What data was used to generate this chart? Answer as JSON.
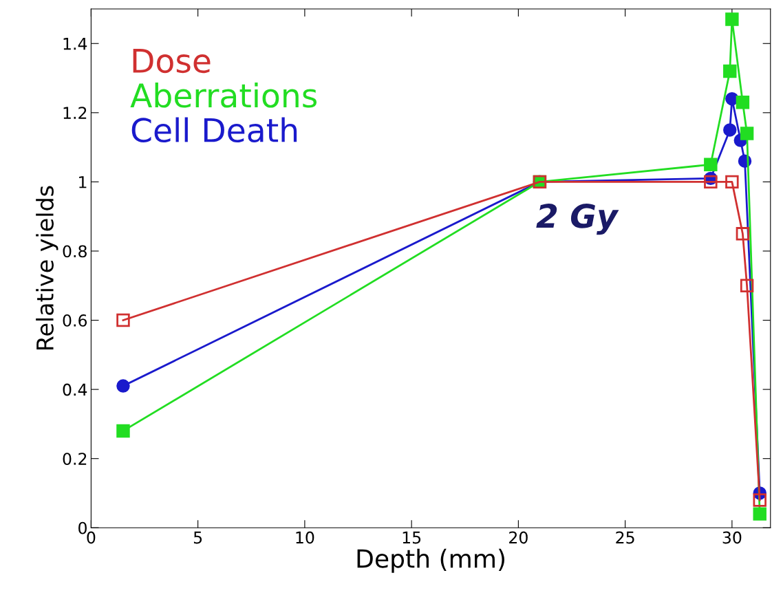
{
  "chart_data": {
    "type": "line",
    "xlabel": "Depth (mm)",
    "ylabel": "Relative yields",
    "xlim": [
      0,
      31.8
    ],
    "xticks": [
      0,
      5,
      10,
      15,
      20,
      25,
      30
    ],
    "ylim": [
      0,
      1.5
    ],
    "yticks": [
      0,
      0.2,
      0.4,
      0.6,
      0.8,
      1,
      1.2,
      1.4
    ],
    "grid": false,
    "legend": "top left",
    "annotations": [
      "2 Gy"
    ],
    "series": [
      {
        "name": "Dose",
        "color": "#d03030",
        "marker": "square",
        "x": [
          1.5,
          21,
          29,
          30,
          30.5,
          30.7,
          31.3
        ],
        "values": [
          0.6,
          1,
          1,
          1,
          0.85,
          0.7,
          0.08
        ]
      },
      {
        "name": "Aberrations",
        "color": "#22dd22",
        "marker": "square",
        "x": [
          1.5,
          21,
          29,
          29.9,
          30,
          30.5,
          30.7,
          31.3
        ],
        "values": [
          0.28,
          1,
          1.05,
          1.32,
          1.47,
          1.23,
          1.14,
          0.04
        ]
      },
      {
        "name": "Cell Death",
        "color": "#1a1acc",
        "marker": "circle",
        "x": [
          1.5,
          21,
          29,
          29.9,
          30,
          30.4,
          30.6,
          31.3
        ],
        "values": [
          0.41,
          1,
          1.01,
          1.15,
          1.24,
          1.12,
          1.06,
          0.1
        ]
      }
    ]
  }
}
